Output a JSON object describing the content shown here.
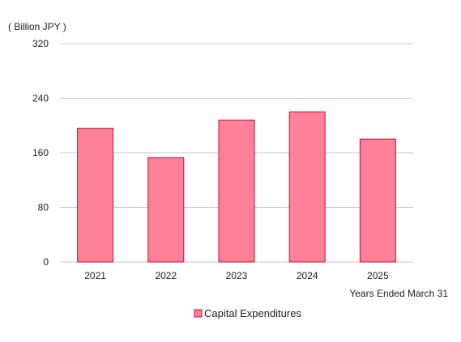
{
  "chart_data": {
    "type": "bar",
    "categories": [
      "2021",
      "2022",
      "2023",
      "2024",
      "2025"
    ],
    "series": [
      {
        "name": "Capital Expenditures",
        "values": [
          196,
          153,
          208,
          220,
          180
        ],
        "fill_color": "#ff8099",
        "stroke_color": "#c8102e"
      }
    ],
    "ylabel": "( Billion JPY )",
    "xlabel": "Years Ended March 31",
    "ylim": [
      0,
      320
    ],
    "yticks": [
      0,
      80,
      160,
      240,
      320
    ],
    "grid": true,
    "gridline_color": "#c8c8c8",
    "legend_position": "bottom-center"
  }
}
